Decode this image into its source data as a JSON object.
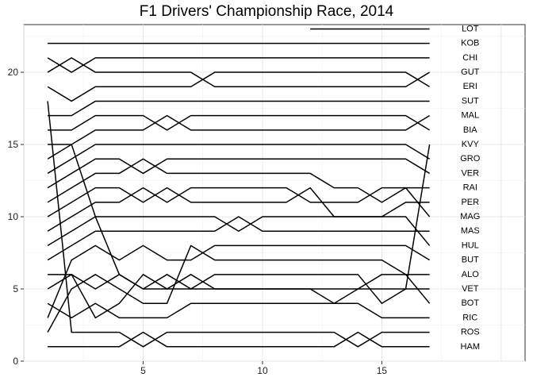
{
  "chart_data": {
    "type": "line",
    "title": "F1 Drivers' Championship Race, 2014",
    "xlabel": "",
    "ylabel": "",
    "xlim": [
      0,
      21
    ],
    "ylim": [
      0,
      23.3
    ],
    "x_ticks": [
      5,
      10,
      15
    ],
    "y_ticks": [
      0,
      5,
      10,
      15,
      20
    ],
    "grid": true,
    "legend": "labels at line ends (right)",
    "line_color": "#000000",
    "series": [
      {
        "name": "HAM",
        "x": [
          1,
          2,
          3,
          4,
          5,
          6,
          7,
          8,
          9,
          10,
          11,
          12,
          13,
          14,
          15,
          16,
          17
        ],
        "y": [
          1,
          1,
          1,
          1,
          2,
          1,
          1,
          1,
          1,
          1,
          1,
          1,
          1,
          2,
          1,
          1,
          1
        ]
      },
      {
        "name": "ROS",
        "x": [
          1,
          2,
          3,
          4,
          5,
          6,
          7,
          8,
          9,
          10,
          11,
          12,
          13,
          14,
          15,
          16,
          17
        ],
        "y": [
          18,
          2,
          2,
          2,
          1,
          2,
          2,
          2,
          2,
          2,
          2,
          2,
          2,
          1,
          2,
          2,
          2
        ]
      },
      {
        "name": "RIC",
        "x": [
          1,
          2,
          3,
          4,
          5,
          6,
          7,
          8,
          9,
          10,
          11,
          12,
          13,
          14,
          15,
          16,
          17
        ],
        "y": [
          4,
          3,
          4,
          3,
          3,
          3,
          4,
          4,
          4,
          4,
          4,
          4,
          4,
          4,
          3,
          3,
          3
        ]
      },
      {
        "name": "BOT",
        "x": [
          1,
          2,
          3,
          4,
          5,
          6,
          7,
          8,
          9,
          10,
          11,
          12,
          13,
          14,
          15,
          16,
          17
        ],
        "y": [
          5,
          6,
          3,
          4,
          6,
          5,
          6,
          5,
          5,
          5,
          5,
          5,
          4,
          5,
          6,
          6,
          4
        ]
      },
      {
        "name": "VET",
        "x": [
          1,
          2,
          3,
          4,
          5,
          6,
          7,
          8,
          9,
          10,
          11,
          12,
          13,
          14,
          15,
          16,
          17
        ],
        "y": [
          6,
          6,
          5,
          6,
          5,
          6,
          5,
          6,
          6,
          6,
          6,
          6,
          6,
          6,
          4,
          5,
          5
        ]
      },
      {
        "name": "ALO",
        "x": [
          1,
          2,
          3,
          4,
          5,
          6,
          7,
          8,
          9,
          10,
          11,
          12,
          13,
          14,
          15,
          16,
          17
        ],
        "y": [
          2,
          5,
          6,
          5,
          4,
          4,
          8,
          7,
          7,
          7,
          7,
          7,
          7,
          7,
          7,
          6,
          6
        ]
      },
      {
        "name": "BUT",
        "x": [
          1,
          2,
          3,
          4,
          5,
          6,
          7,
          8,
          9,
          10,
          11,
          12,
          13,
          14,
          15,
          16,
          17
        ],
        "y": [
          3,
          7,
          8,
          7,
          8,
          7,
          7,
          8,
          8,
          8,
          8,
          8,
          8,
          8,
          8,
          8,
          7
        ]
      },
      {
        "name": "MAS",
        "x": [
          1,
          2,
          3,
          4,
          5,
          6,
          7,
          8,
          9,
          10,
          11,
          12,
          13,
          14,
          15,
          16,
          17
        ],
        "y": [
          7,
          8,
          9,
          9,
          9,
          9,
          9,
          9,
          10,
          9,
          9,
          9,
          9,
          9,
          9,
          9,
          9
        ]
      },
      {
        "name": "HUL",
        "x": [
          1,
          2,
          3,
          4,
          5,
          6,
          7,
          8,
          9,
          10,
          11,
          12,
          13,
          14,
          15,
          16,
          17
        ],
        "y": [
          8,
          9,
          10,
          10,
          10,
          10,
          10,
          10,
          9,
          10,
          10,
          10,
          10,
          10,
          10,
          10,
          8
        ]
      },
      {
        "name": "MAG",
        "x": [
          1,
          2,
          3,
          4,
          5,
          6,
          7,
          8,
          9,
          10,
          11,
          12,
          13,
          14,
          15,
          16,
          17
        ],
        "y": [
          9,
          10,
          11,
          11,
          12,
          11,
          12,
          12,
          12,
          12,
          12,
          11,
          11,
          11,
          12,
          12,
          10
        ]
      },
      {
        "name": "PER",
        "x": [
          1,
          2,
          3,
          4,
          5,
          6,
          7,
          8,
          9,
          10,
          11,
          12,
          13,
          14,
          15,
          16,
          17
        ],
        "y": [
          10,
          11,
          12,
          12,
          11,
          12,
          11,
          11,
          11,
          11,
          11,
          12,
          10,
          10,
          10,
          11,
          11
        ]
      },
      {
        "name": "RAI",
        "x": [
          1,
          2,
          3,
          4,
          5,
          6,
          7,
          8,
          9,
          10,
          11,
          12,
          13,
          14,
          15,
          16,
          17
        ],
        "y": [
          11,
          12,
          13,
          13,
          14,
          13,
          13,
          13,
          13,
          13,
          13,
          13,
          12,
          12,
          11,
          12,
          12
        ]
      },
      {
        "name": "VER",
        "x": [
          1,
          2,
          3,
          4,
          5,
          6,
          7,
          8,
          9,
          10,
          11,
          12,
          13,
          14,
          15,
          16,
          17
        ],
        "y": [
          12,
          13,
          14,
          14,
          13,
          14,
          14,
          14,
          14,
          14,
          14,
          14,
          14,
          14,
          14,
          14,
          13
        ]
      },
      {
        "name": "GRO",
        "x": [
          1,
          2,
          3,
          4,
          5,
          6,
          7,
          8,
          9,
          10,
          11,
          12,
          13,
          14,
          15,
          16,
          17
        ],
        "y": [
          13,
          14,
          15,
          15,
          15,
          15,
          15,
          15,
          15,
          15,
          15,
          15,
          15,
          15,
          15,
          15,
          14
        ]
      },
      {
        "name": "KVY",
        "x": [
          1,
          2,
          3,
          4,
          5,
          6,
          7,
          8,
          9,
          10,
          11,
          12,
          13,
          14,
          15,
          16,
          17
        ],
        "y": [
          15,
          15,
          10,
          6,
          5,
          5,
          5,
          5,
          5,
          5,
          5,
          5,
          5,
          5,
          5,
          5,
          15
        ]
      },
      {
        "name": "MAL",
        "x": [
          1,
          2,
          3,
          4,
          5,
          6,
          7,
          8,
          9,
          10,
          11,
          12,
          13,
          14,
          15,
          16,
          17
        ],
        "y": [
          14,
          15,
          16,
          16,
          16,
          17,
          16,
          16,
          16,
          16,
          16,
          16,
          16,
          16,
          16,
          16,
          17
        ]
      },
      {
        "name": "BIA",
        "x": [
          1,
          2,
          3,
          4,
          5,
          6,
          7,
          8,
          9,
          10,
          11,
          12,
          13,
          14,
          15,
          16,
          17
        ],
        "y": [
          16,
          16,
          17,
          17,
          17,
          16,
          17,
          17,
          17,
          17,
          17,
          17,
          17,
          17,
          17,
          17,
          16
        ]
      },
      {
        "name": "SUT",
        "x": [
          1,
          2,
          3,
          4,
          5,
          6,
          7,
          8,
          9,
          10,
          11,
          12,
          13,
          14,
          15,
          16,
          17
        ],
        "y": [
          17,
          17,
          18,
          18,
          18,
          18,
          18,
          18,
          18,
          18,
          18,
          18,
          18,
          18,
          18,
          18,
          18
        ]
      },
      {
        "name": "ERI",
        "x": [
          1,
          2,
          3,
          4,
          5,
          6,
          7,
          8,
          9,
          10,
          11,
          12,
          13,
          14,
          15,
          16,
          17
        ],
        "y": [
          19,
          18,
          19,
          19,
          19,
          19,
          19,
          20,
          20,
          20,
          20,
          20,
          20,
          20,
          20,
          20,
          19
        ]
      },
      {
        "name": "GUT",
        "x": [
          1,
          2,
          3,
          4,
          5,
          6,
          7,
          8,
          9,
          10,
          11,
          12,
          13,
          14,
          15,
          16,
          17
        ],
        "y": [
          20,
          21,
          20,
          20,
          20,
          20,
          20,
          19,
          19,
          19,
          19,
          19,
          19,
          19,
          19,
          19,
          20
        ]
      },
      {
        "name": "CHI",
        "x": [
          1,
          2,
          3,
          4,
          5,
          6,
          7,
          8,
          9,
          10,
          11,
          12,
          13,
          14,
          15,
          16,
          17
        ],
        "y": [
          21,
          20,
          21,
          21,
          21,
          21,
          21,
          21,
          21,
          21,
          21,
          21,
          21,
          21,
          21,
          21,
          21
        ]
      },
      {
        "name": "KOB",
        "x": [
          1,
          2,
          3,
          4,
          5,
          6,
          7,
          8,
          9,
          10,
          11,
          12,
          13,
          14,
          15,
          16,
          17
        ],
        "y": [
          22,
          22,
          22,
          22,
          22,
          22,
          22,
          22,
          22,
          22,
          22,
          22,
          22,
          22,
          22,
          22,
          22
        ]
      },
      {
        "name": "LOT",
        "x": [
          12,
          13,
          14,
          15,
          16,
          17
        ],
        "y": [
          23,
          23,
          23,
          23,
          23,
          23
        ]
      }
    ]
  }
}
